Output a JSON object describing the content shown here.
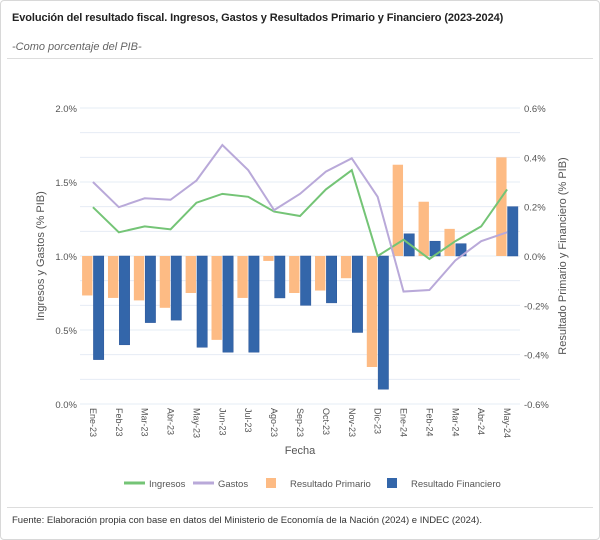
{
  "title": "Evolución del resultado fiscal. Ingresos, Gastos y Resultados Primario y Financiero (2023-2024)",
  "subtitle": "-Como porcentaje del PIB-",
  "footer": "Fuente: Elaboración propia con base en datos del Ministerio de Economía de la Nación (2024) e INDEC (2024).",
  "chart_data": {
    "type": "bar+line",
    "xlabel": "Fecha",
    "ylabel_left": "Ingresos y Gastos (% PIB)",
    "ylabel_right": "Resultado Primario y Financiero (% PIB)",
    "ylim_left": [
      0,
      2.0
    ],
    "ylim_right": [
      -0.6,
      0.6
    ],
    "yticks_left": [
      "0.0%",
      "0.5%",
      "1.0%",
      "1.5%",
      "2.0%"
    ],
    "yticks_right": [
      "-0.6%",
      "-0.4%",
      "-0.2%",
      "0.0%",
      "0.2%",
      "0.4%",
      "0.6%"
    ],
    "grid": true,
    "legend_position": "bottom",
    "categories": [
      "Ene-23",
      "Feb-23",
      "Mar-23",
      "Abr-23",
      "May-23",
      "Jun-23",
      "Jul-23",
      "Ago-23",
      "Sep-23",
      "Oct-23",
      "Nov-23",
      "Dic-23",
      "Ene-24",
      "Feb-24",
      "Mar-24",
      "Abr-24",
      "May-24"
    ],
    "series": [
      {
        "name": "Ingresos",
        "type": "line",
        "axis": "left",
        "color": "#74c476",
        "values": [
          1.33,
          1.16,
          1.2,
          1.18,
          1.36,
          1.42,
          1.4,
          1.3,
          1.27,
          1.45,
          1.58,
          1.0,
          1.11,
          0.98,
          1.1,
          1.2,
          1.45
        ]
      },
      {
        "name": "Gastos",
        "type": "line",
        "axis": "left",
        "color": "#b9a9d9",
        "values": [
          1.5,
          1.33,
          1.39,
          1.38,
          1.51,
          1.75,
          1.58,
          1.31,
          1.42,
          1.57,
          1.66,
          1.4,
          0.76,
          0.77,
          0.97,
          1.1,
          1.16
        ]
      },
      {
        "name": "Resultado Primario",
        "type": "bar",
        "axis": "right",
        "color": "#fdbb84",
        "values": [
          -0.16,
          -0.17,
          -0.18,
          -0.21,
          -0.15,
          -0.34,
          -0.17,
          -0.02,
          -0.15,
          -0.14,
          -0.09,
          -0.45,
          0.37,
          0.22,
          0.11,
          null,
          0.4
        ]
      },
      {
        "name": "Resultado Financiero",
        "type": "bar",
        "axis": "right",
        "color": "#3366aa",
        "values": [
          -0.42,
          -0.36,
          -0.27,
          -0.26,
          -0.37,
          -0.39,
          -0.39,
          -0.17,
          -0.2,
          -0.19,
          -0.31,
          -0.54,
          0.09,
          0.06,
          0.05,
          null,
          0.2
        ]
      }
    ]
  }
}
